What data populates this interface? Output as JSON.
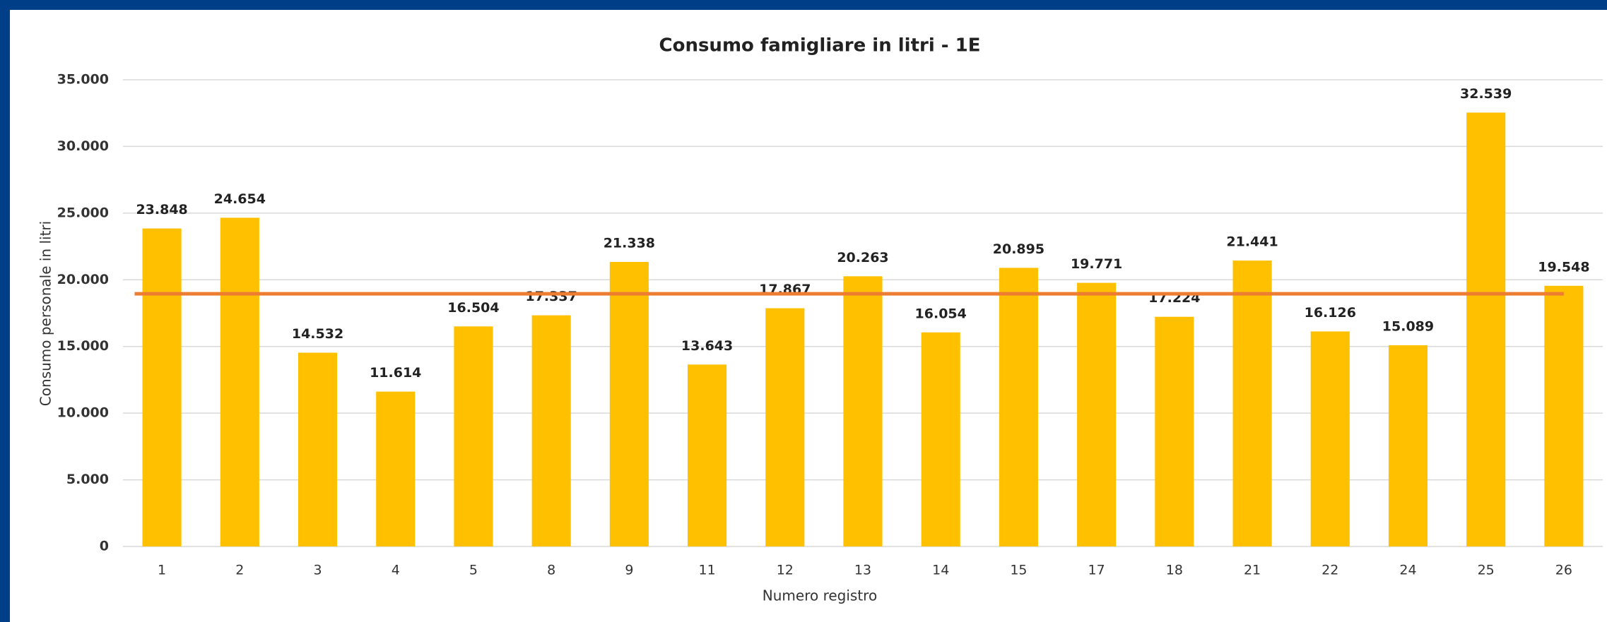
{
  "chart_data": {
    "type": "bar",
    "title": "Consumo famigliare in litri - 1E",
    "x_label": "Numero registro",
    "y_label": "Consumo personale in litri",
    "categories": [
      "1",
      "2",
      "3",
      "4",
      "5",
      "8",
      "9",
      "11",
      "12",
      "13",
      "14",
      "15",
      "17",
      "18",
      "21",
      "22",
      "24",
      "25",
      "26"
    ],
    "values": [
      23848,
      24654,
      14532,
      11614,
      16504,
      17337,
      21338,
      13643,
      17867,
      20263,
      16054,
      20895,
      19771,
      17224,
      21441,
      16126,
      15089,
      32539,
      19548
    ],
    "value_labels": [
      "23.848",
      "24.654",
      "14.532",
      "11.614",
      "16.504",
      "17.337",
      "21.338",
      "13.643",
      "17.867",
      "20.263",
      "16.054",
      "20.895",
      "19.771",
      "17.224",
      "21.441",
      "16.126",
      "15.089",
      "32.539",
      "19.548"
    ],
    "color": "#ffc000",
    "reference_line": {
      "value": 18950,
      "color": "#ed7d31"
    },
    "ylim": [
      0,
      35000
    ],
    "yticks": [
      {
        "value": 0,
        "label": "0"
      },
      {
        "value": 5000,
        "label": "5.000"
      },
      {
        "value": 10000,
        "label": "10.000"
      },
      {
        "value": 15000,
        "label": "15.000"
      },
      {
        "value": 20000,
        "label": "20.000"
      },
      {
        "value": 25000,
        "label": "25.000"
      },
      {
        "value": 30000,
        "label": "30.000"
      },
      {
        "value": 35000,
        "label": "35.000"
      }
    ],
    "grid": true
  }
}
